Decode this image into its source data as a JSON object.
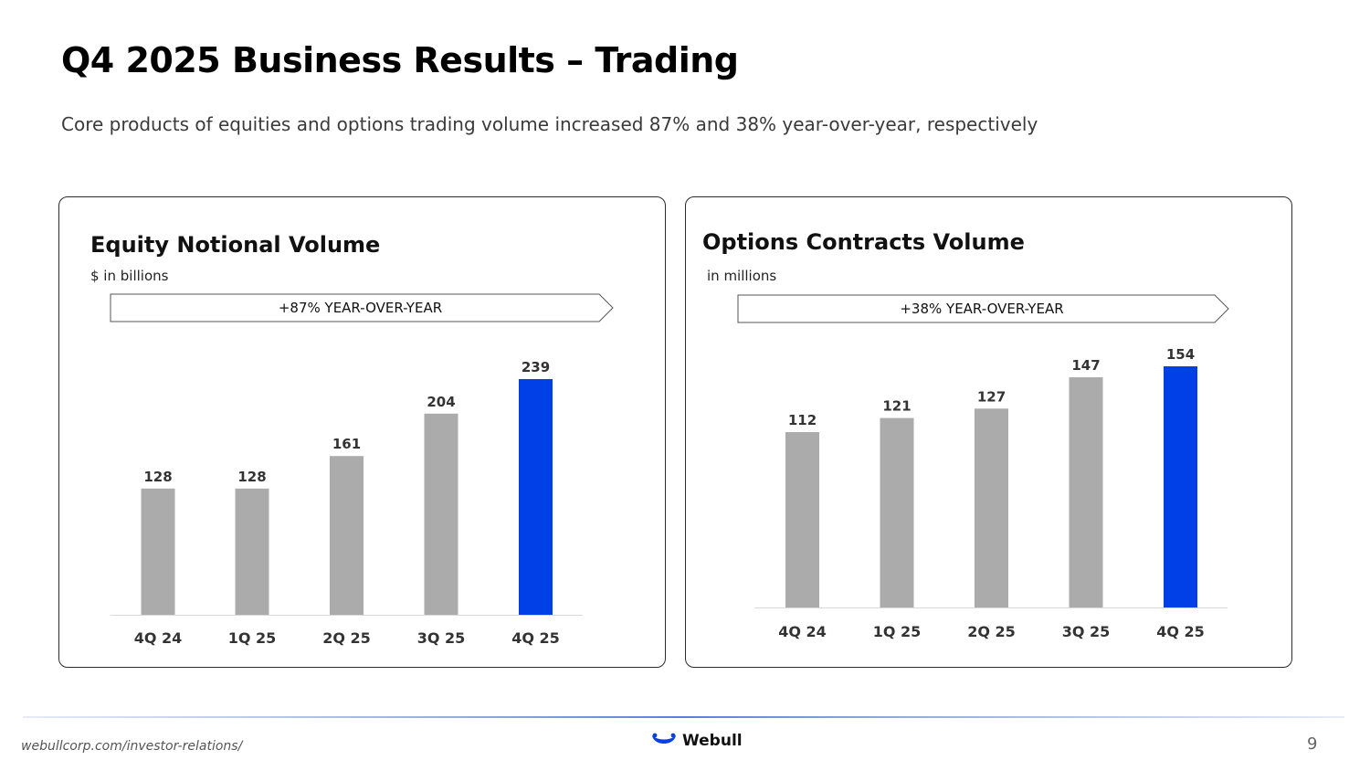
{
  "slide": {
    "title": "Q4 2025 Business Results – Trading",
    "subtitle": "Core products of equities and options trading volume increased 87% and 38% year-over-year, respectively",
    "footer_url": "webullcorp.com/investor-relations/",
    "brand": "Webull",
    "page_number": "9"
  },
  "colors": {
    "bar_default": "#ababab",
    "bar_highlight": "#0040e6",
    "brand": "#0a3fe0"
  },
  "chart_data": [
    {
      "type": "bar",
      "title": "Equity Notional Volume",
      "unit_label": "$ in billions",
      "growth_banner": "+87% YEAR-OVER-YEAR",
      "categories": [
        "4Q 24",
        "1Q 25",
        "2Q 25",
        "3Q 25",
        "4Q 25"
      ],
      "values": [
        128,
        128,
        161,
        204,
        239
      ],
      "highlight": "4Q 25",
      "ylim": [
        0,
        239
      ]
    },
    {
      "type": "bar",
      "title": "Options Contracts Volume",
      "unit_label": "in millions",
      "growth_banner": "+38% YEAR-OVER-YEAR",
      "categories": [
        "4Q 24",
        "1Q 25",
        "2Q 25",
        "3Q 25",
        "4Q 25"
      ],
      "values": [
        112,
        121,
        127,
        147,
        154
      ],
      "highlight": "4Q 25",
      "ylim": [
        0,
        154
      ]
    }
  ]
}
